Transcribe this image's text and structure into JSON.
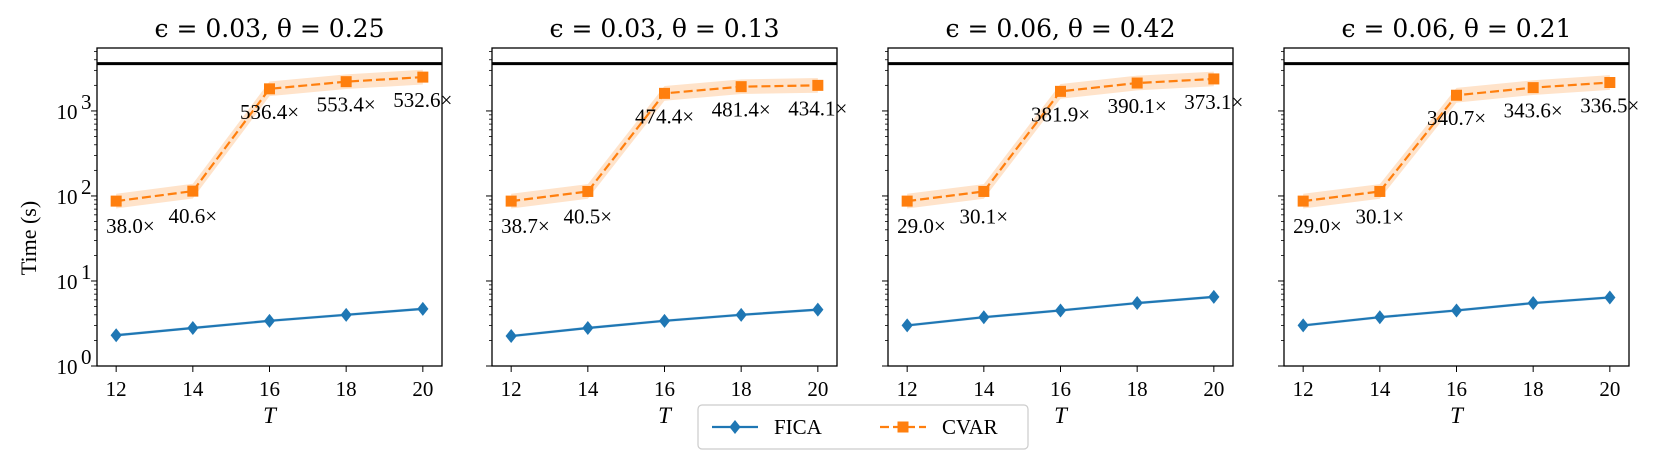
{
  "ylabel": "Time (s)",
  "legend": {
    "position": "bottom-center",
    "entries": [
      {
        "name": "FICA",
        "color": "#1f77b4",
        "marker": "diamond",
        "linestyle": "solid"
      },
      {
        "name": "CVAR",
        "color": "#ff7f0e",
        "marker": "square",
        "linestyle": "dashed"
      }
    ]
  },
  "chart_data": [
    {
      "type": "line",
      "title": "ϵ = 0.03, θ = 0.25",
      "xlabel": "T",
      "ylabel": "Time (s)",
      "yscale": "log",
      "ylim": [
        1,
        5500
      ],
      "xlim": [
        11.5,
        20.5
      ],
      "xticks": [
        12,
        14,
        16,
        18,
        20
      ],
      "yticks": [
        1,
        10,
        100,
        1000
      ],
      "hline": 3600,
      "x": [
        12,
        14,
        16,
        18,
        20
      ],
      "series": [
        {
          "name": "FICA",
          "values": [
            2.3,
            2.8,
            3.4,
            4.0,
            4.7
          ]
        },
        {
          "name": "CVAR",
          "values": [
            87,
            114,
            1820,
            2210,
            2500
          ]
        }
      ],
      "annotations": [
        "38.0×",
        "40.6×",
        "536.4×",
        "553.4×",
        "532.6×"
      ]
    },
    {
      "type": "line",
      "title": "ϵ = 0.03, θ = 0.13",
      "xlabel": "T",
      "ylabel": "",
      "yscale": "log",
      "ylim": [
        1,
        5500
      ],
      "xlim": [
        11.5,
        20.5
      ],
      "xticks": [
        12,
        14,
        16,
        18,
        20
      ],
      "yticks": [
        1,
        10,
        100,
        1000
      ],
      "hline": 3600,
      "x": [
        12,
        14,
        16,
        18,
        20
      ],
      "series": [
        {
          "name": "FICA",
          "values": [
            2.25,
            2.8,
            3.4,
            4.0,
            4.6
          ]
        },
        {
          "name": "CVAR",
          "values": [
            87,
            113,
            1610,
            1930,
            2000
          ]
        }
      ],
      "annotations": [
        "38.7×",
        "40.5×",
        "474.4×",
        "481.4×",
        "434.1×"
      ]
    },
    {
      "type": "line",
      "title": "ϵ = 0.06, θ = 0.42",
      "xlabel": "T",
      "ylabel": "",
      "yscale": "log",
      "ylim": [
        1,
        5500
      ],
      "xlim": [
        11.5,
        20.5
      ],
      "xticks": [
        12,
        14,
        16,
        18,
        20
      ],
      "yticks": [
        1,
        10,
        100,
        1000
      ],
      "hline": 3600,
      "x": [
        12,
        14,
        16,
        18,
        20
      ],
      "series": [
        {
          "name": "FICA",
          "values": [
            3.0,
            3.75,
            4.5,
            5.5,
            6.5
          ]
        },
        {
          "name": "CVAR",
          "values": [
            87,
            113,
            1700,
            2130,
            2380
          ]
        }
      ],
      "annotations": [
        "29.0×",
        "30.1×",
        "381.9×",
        "390.1×",
        "373.1×"
      ]
    },
    {
      "type": "line",
      "title": "ϵ = 0.06, θ = 0.21",
      "xlabel": "T",
      "ylabel": "",
      "yscale": "log",
      "ylim": [
        1,
        5500
      ],
      "xlim": [
        11.5,
        20.5
      ],
      "xticks": [
        12,
        14,
        16,
        18,
        20
      ],
      "yticks": [
        1,
        10,
        100,
        1000
      ],
      "hline": 3600,
      "x": [
        12,
        14,
        16,
        18,
        20
      ],
      "series": [
        {
          "name": "FICA",
          "values": [
            3.0,
            3.75,
            4.5,
            5.5,
            6.4
          ]
        },
        {
          "name": "CVAR",
          "values": [
            87,
            113,
            1530,
            1880,
            2160
          ]
        }
      ],
      "annotations": [
        "29.0×",
        "30.1×",
        "340.7×",
        "343.6×",
        "336.5×"
      ]
    }
  ]
}
